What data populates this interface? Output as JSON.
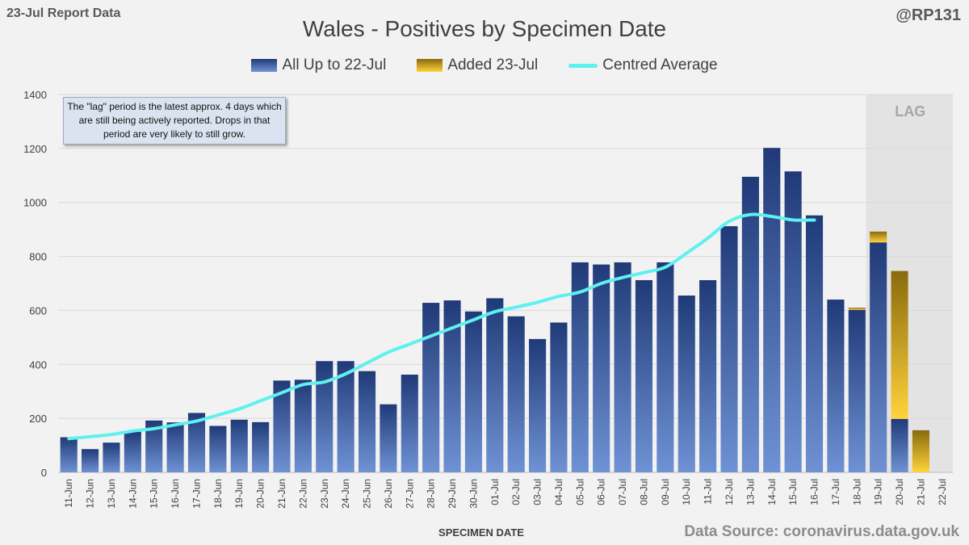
{
  "header": {
    "report_label": "23-Jul Report Data",
    "handle": "@RP131"
  },
  "note": {
    "text": "The \"lag\" period is the latest approx. 4 days which are still being actively reported.  Drops in that period are very likely to still grow."
  },
  "source": "Data Source: coronavirus.data.gov.uk",
  "colors": {
    "blue_dark": "#203a78",
    "blue_light": "#6f92d4",
    "gold_dark": "#8a6a0d",
    "gold_light": "#ffd33b",
    "average_line": "#5ff0f0",
    "lag_shade": "#e3e3e3",
    "lag_text": "#a6a6a6"
  },
  "chart_data": {
    "type": "bar",
    "title": "Wales - Positives by Specimen Date",
    "xlabel": "SPECIMEN DATE",
    "ylabel": "",
    "ylim": [
      0,
      1400
    ],
    "yticks": [
      0,
      200,
      400,
      600,
      800,
      1000,
      1200,
      1400
    ],
    "legend": [
      "All Up to 22-Jul",
      "Added 23-Jul",
      "Centred Average"
    ],
    "legend_position": "top-center",
    "lag_label": "LAG",
    "lag_start": "19-Jul",
    "categories": [
      "11-Jun",
      "12-Jun",
      "13-Jun",
      "14-Jun",
      "15-Jun",
      "16-Jun",
      "17-Jun",
      "18-Jun",
      "19-Jun",
      "20-Jun",
      "21-Jun",
      "22-Jun",
      "23-Jun",
      "24-Jun",
      "25-Jun",
      "26-Jun",
      "27-Jun",
      "28-Jun",
      "29-Jun",
      "30-Jun",
      "01-Jul",
      "02-Jul",
      "03-Jul",
      "04-Jul",
      "05-Jul",
      "06-Jul",
      "07-Jul",
      "08-Jul",
      "09-Jul",
      "10-Jul",
      "11-Jul",
      "12-Jul",
      "13-Jul",
      "14-Jul",
      "15-Jul",
      "16-Jul",
      "17-Jul",
      "18-Jul",
      "19-Jul",
      "20-Jul",
      "21-Jul",
      "22-Jul"
    ],
    "series": [
      {
        "name": "All Up to 22-Jul",
        "values": [
          130,
          86,
          110,
          150,
          192,
          185,
          220,
          172,
          195,
          186,
          340,
          343,
          412,
          412,
          375,
          252,
          362,
          628,
          637,
          596,
          645,
          578,
          494,
          555,
          778,
          770,
          778,
          712,
          778,
          655,
          712,
          912,
          1095,
          1202,
          1115,
          952,
          640,
          602,
          852,
          198,
          0,
          0
        ]
      },
      {
        "name": "Added 23-Jul",
        "values": [
          0,
          0,
          0,
          0,
          0,
          0,
          0,
          0,
          0,
          0,
          0,
          0,
          0,
          0,
          0,
          0,
          0,
          0,
          0,
          0,
          0,
          0,
          0,
          0,
          0,
          0,
          0,
          0,
          0,
          0,
          0,
          0,
          0,
          0,
          0,
          0,
          0,
          8,
          40,
          548,
          156,
          0
        ]
      },
      {
        "name": "Centred Average",
        "values": [
          125,
          132,
          140,
          153,
          162,
          176,
          190,
          212,
          235,
          265,
          295,
          325,
          335,
          365,
          405,
          445,
          475,
          505,
          535,
          565,
          595,
          612,
          630,
          652,
          668,
          700,
          722,
          740,
          760,
          812,
          868,
          930,
          955,
          948,
          935,
          935,
          null,
          null,
          null,
          null,
          null,
          null
        ]
      }
    ]
  }
}
